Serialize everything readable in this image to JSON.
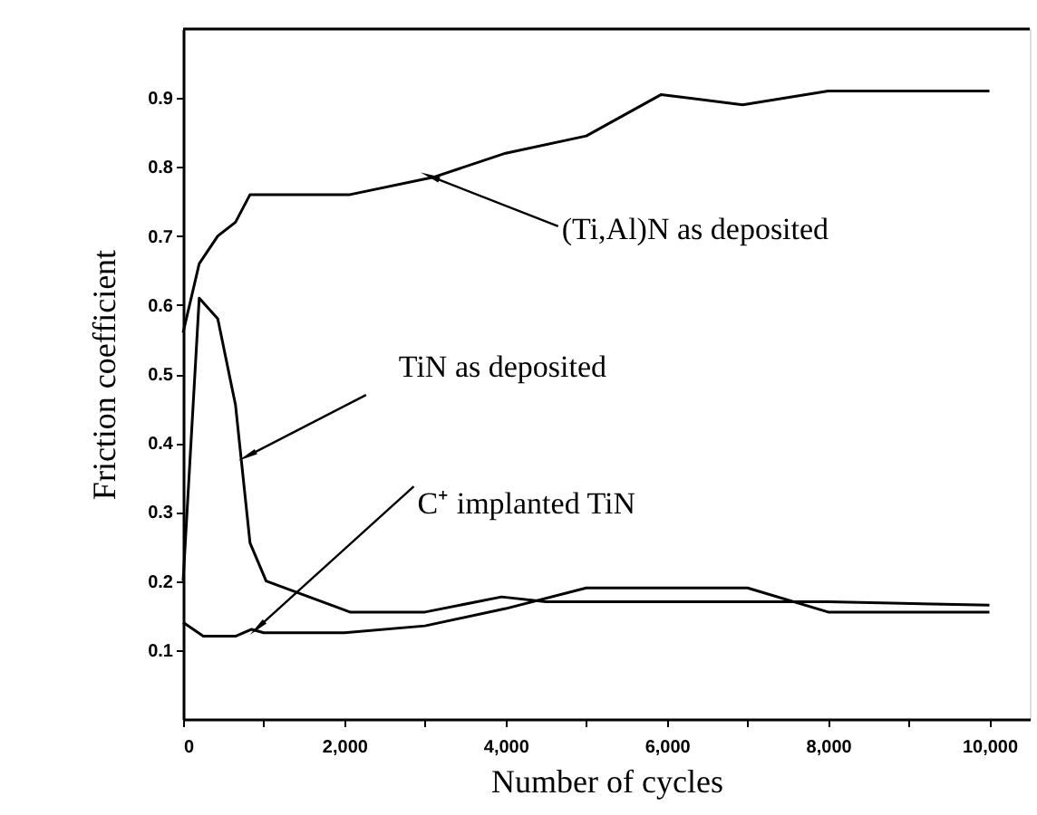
{
  "chart_data": {
    "type": "line",
    "xlabel": "Number of cycles",
    "ylabel": "Friction coefficient",
    "xlim": [
      0,
      10500
    ],
    "ylim": [
      0,
      1.0
    ],
    "xticks": [
      {
        "value": 0,
        "label": "0"
      },
      {
        "value": 1000,
        "label": null
      },
      {
        "value": 2000,
        "label": "2,000"
      },
      {
        "value": 3000,
        "label": null
      },
      {
        "value": 4000,
        "label": "4,000"
      },
      {
        "value": 5000,
        "label": null
      },
      {
        "value": 6000,
        "label": "6,000"
      },
      {
        "value": 7000,
        "label": null
      },
      {
        "value": 8000,
        "label": "8,000"
      },
      {
        "value": 9000,
        "label": null
      },
      {
        "value": 10000,
        "label": "10,000"
      }
    ],
    "yticks": [
      0.1,
      0.2,
      0.3,
      0.4,
      0.5,
      0.6,
      0.7,
      0.8,
      0.9
    ],
    "series": [
      {
        "color": "#000000",
        "x": [
          0,
          200,
          430,
          650,
          830,
          2070,
          3100,
          4000,
          5000,
          5930,
          6940,
          8000,
          10000
        ],
        "values": [
          0.56,
          0.66,
          0.7,
          0.72,
          0.76,
          0.76,
          0.785,
          0.82,
          0.845,
          0.905,
          0.89,
          0.91,
          0.91
        ]
      },
      {
        "color": "#000000",
        "x": [
          0,
          200,
          430,
          650,
          830,
          1030,
          2070,
          3000,
          3950,
          4500,
          8000,
          10000
        ],
        "values": [
          0.2,
          0.61,
          0.58,
          0.455,
          0.255,
          0.2,
          0.155,
          0.155,
          0.177,
          0.17,
          0.17,
          0.165
        ]
      },
      {
        "color": "#000000",
        "x": [
          0,
          250,
          650,
          850,
          1000,
          2000,
          3000,
          4000,
          5000,
          7000,
          8000,
          10000
        ],
        "values": [
          0.14,
          0.12,
          0.12,
          0.13,
          0.125,
          0.125,
          0.135,
          0.16,
          0.19,
          0.19,
          0.155,
          0.155
        ]
      }
    ],
    "annotations": [
      {
        "text": "(Ti,Al)N as deposited",
        "x": 3100,
        "y": 0.785
      },
      {
        "text": "TiN as deposited",
        "x": 830,
        "y": 0.383
      },
      {
        "text": "C⁺ implanted TiN",
        "x": 950,
        "y": 0.135
      }
    ],
    "grid": false,
    "marker": "none",
    "line_style": "solid"
  }
}
